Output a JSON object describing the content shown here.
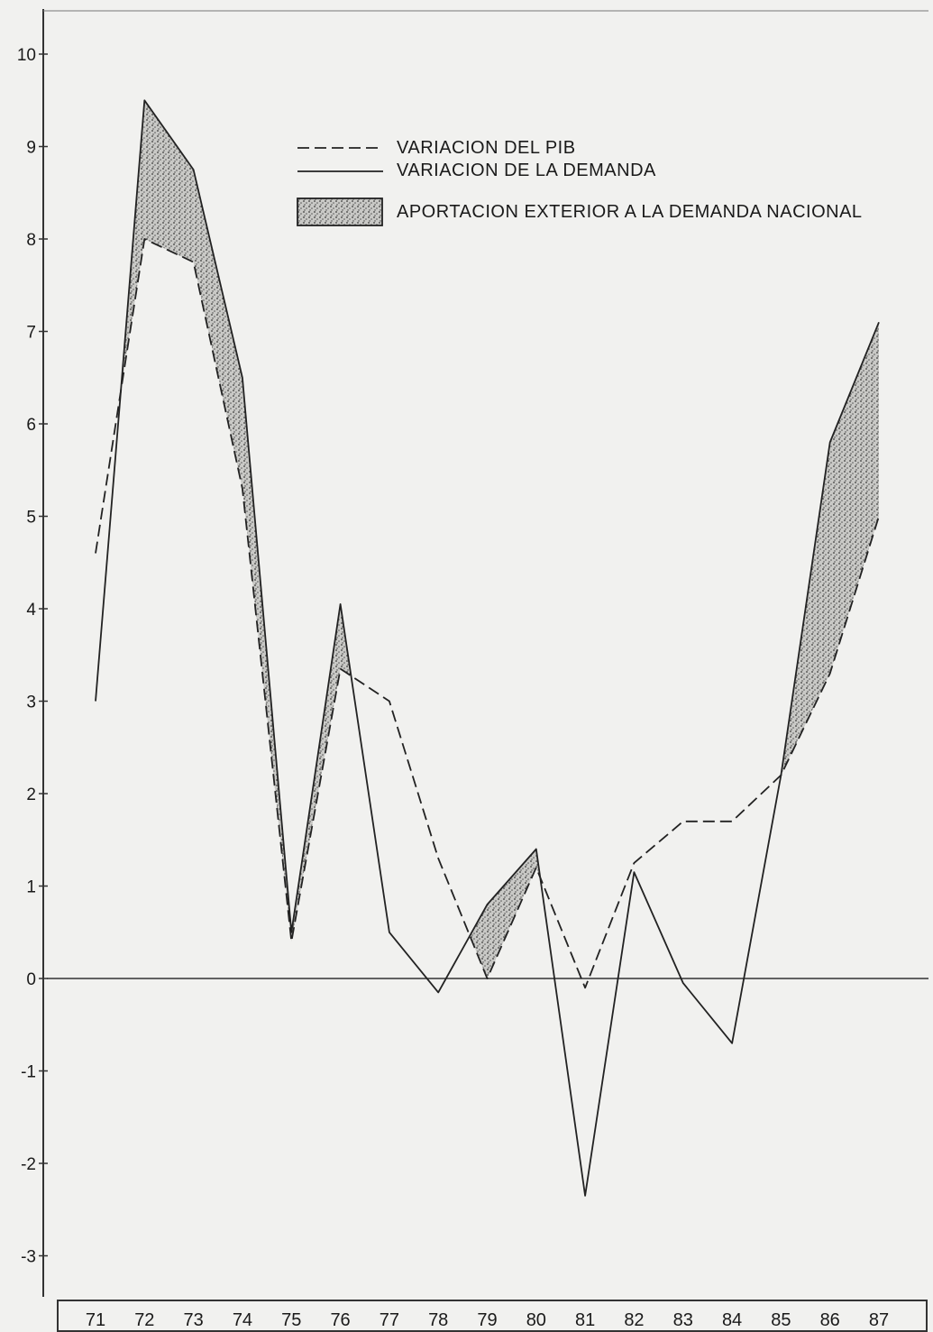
{
  "chart_data": {
    "type": "line",
    "title": "",
    "xlabel": "",
    "ylabel": "",
    "ylim": [
      -3.4,
      10.3
    ],
    "y_ticks": [
      "-3",
      "-2",
      "-1",
      "0",
      "1",
      "2",
      "3",
      "4",
      "5",
      "6",
      "7",
      "8",
      "9",
      "10"
    ],
    "categories": [
      "71",
      "72",
      "73",
      "74",
      "75",
      "76",
      "77",
      "78",
      "79",
      "80",
      "81",
      "82",
      "83",
      "84",
      "85",
      "86",
      "87"
    ],
    "series": [
      {
        "name": "VARIACION DEL PIB",
        "style": "dashed",
        "color": "#222222",
        "values": [
          4.6,
          8.0,
          7.75,
          5.3,
          0.4,
          3.35,
          3.0,
          1.3,
          0.0,
          1.2,
          -0.1,
          1.25,
          1.7,
          1.7,
          2.2,
          3.3,
          5.0
        ]
      },
      {
        "name": "VARIACION DE LA DEMANDA",
        "style": "solid",
        "color": "#222222",
        "values": [
          3.0,
          9.5,
          8.75,
          6.5,
          0.5,
          4.05,
          0.5,
          -0.15,
          0.8,
          1.4,
          -2.35,
          1.15,
          -0.05,
          -0.7,
          2.2,
          5.8,
          7.1
        ]
      }
    ],
    "shaded_band": {
      "name": "APORTACION EXTERIOR A LA DEMANDA NACIONAL",
      "fill": "#9a9a9a"
    },
    "legend_position": "top-right",
    "grid": false
  }
}
